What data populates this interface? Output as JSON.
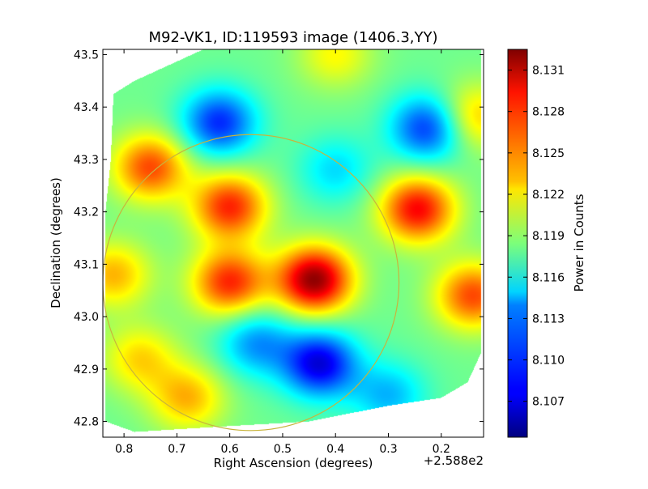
{
  "chart_data": {
    "type": "heatmap",
    "title": "M92-VK1, ID:119593 image (1406.3,YY)",
    "xlabel": "Right Ascension (degrees)",
    "ylabel": "Declination (degrees)",
    "x_offset_text": "+2.588e2",
    "x_ticks": [
      "0.8",
      "0.7",
      "0.6",
      "0.5",
      "0.4",
      "0.3",
      "0.2"
    ],
    "x_tick_values": [
      0.8,
      0.7,
      0.6,
      0.5,
      0.4,
      0.3,
      0.2
    ],
    "xlim": [
      0.84,
      0.12
    ],
    "y_ticks": [
      "43.5",
      "43.4",
      "43.3",
      "43.2",
      "43.1",
      "43.0",
      "42.9",
      "42.8"
    ],
    "y_tick_values": [
      43.5,
      43.4,
      43.3,
      43.2,
      43.1,
      43.0,
      42.9,
      42.8
    ],
    "ylim": [
      42.77,
      43.51
    ],
    "colorbar": {
      "label": "Power in Counts",
      "colormap": "jet",
      "range": [
        8.1044,
        8.1325
      ],
      "ticks": [
        "8.131",
        "8.128",
        "8.125",
        "8.122",
        "8.119",
        "8.116",
        "8.113",
        "8.110",
        "8.107"
      ],
      "tick_values": [
        8.131,
        8.128,
        8.125,
        8.122,
        8.119,
        8.116,
        8.113,
        8.11,
        8.107
      ]
    },
    "baseline_value": 8.118,
    "features": [
      {
        "kind": "peak",
        "ra": 0.44,
        "dec": 43.07,
        "value": 8.132
      },
      {
        "kind": "peak",
        "ra": 0.6,
        "dec": 43.065,
        "value": 8.128
      },
      {
        "kind": "peak",
        "ra": 0.245,
        "dec": 43.205,
        "value": 8.129
      },
      {
        "kind": "peak",
        "ra": 0.75,
        "dec": 43.285,
        "value": 8.127
      },
      {
        "kind": "peak",
        "ra": 0.6,
        "dec": 43.21,
        "value": 8.128
      },
      {
        "kind": "peak",
        "ra": 0.82,
        "dec": 43.08,
        "value": 8.124
      },
      {
        "kind": "peak",
        "ra": 0.14,
        "dec": 43.04,
        "value": 8.127
      },
      {
        "kind": "peak",
        "ra": 0.14,
        "dec": 43.38,
        "value": 8.124
      },
      {
        "kind": "peak",
        "ra": 0.4,
        "dec": 43.5,
        "value": 8.122
      },
      {
        "kind": "peak",
        "ra": 0.68,
        "dec": 42.845,
        "value": 8.124
      },
      {
        "kind": "peak",
        "ra": 0.77,
        "dec": 42.92,
        "value": 8.123
      },
      {
        "kind": "dip",
        "ra": 0.43,
        "dec": 42.91,
        "value": 8.107
      },
      {
        "kind": "dip",
        "ra": 0.55,
        "dec": 42.95,
        "value": 8.112
      },
      {
        "kind": "dip",
        "ra": 0.62,
        "dec": 43.37,
        "value": 8.109
      },
      {
        "kind": "dip",
        "ra": 0.225,
        "dec": 43.36,
        "value": 8.109
      },
      {
        "kind": "dip",
        "ra": 0.4,
        "dec": 43.28,
        "value": 8.114
      },
      {
        "kind": "dip",
        "ra": 0.3,
        "dec": 42.85,
        "value": 8.113
      }
    ],
    "beam_circle": {
      "center_ra": 0.56,
      "center_dec": 43.065,
      "radius_ra": 0.28,
      "color": "#c8b43c"
    },
    "image_footprint": [
      [
        0.835,
        42.8
      ],
      [
        0.78,
        42.78
      ],
      [
        0.62,
        42.79
      ],
      [
        0.45,
        42.8
      ],
      [
        0.3,
        42.83
      ],
      [
        0.2,
        42.845
      ],
      [
        0.15,
        42.875
      ],
      [
        0.125,
        42.93
      ],
      [
        0.125,
        43.51
      ],
      [
        0.65,
        43.51
      ],
      [
        0.78,
        43.45
      ],
      [
        0.82,
        43.425
      ],
      [
        0.825,
        43.3
      ],
      [
        0.835,
        43.2
      ]
    ]
  }
}
